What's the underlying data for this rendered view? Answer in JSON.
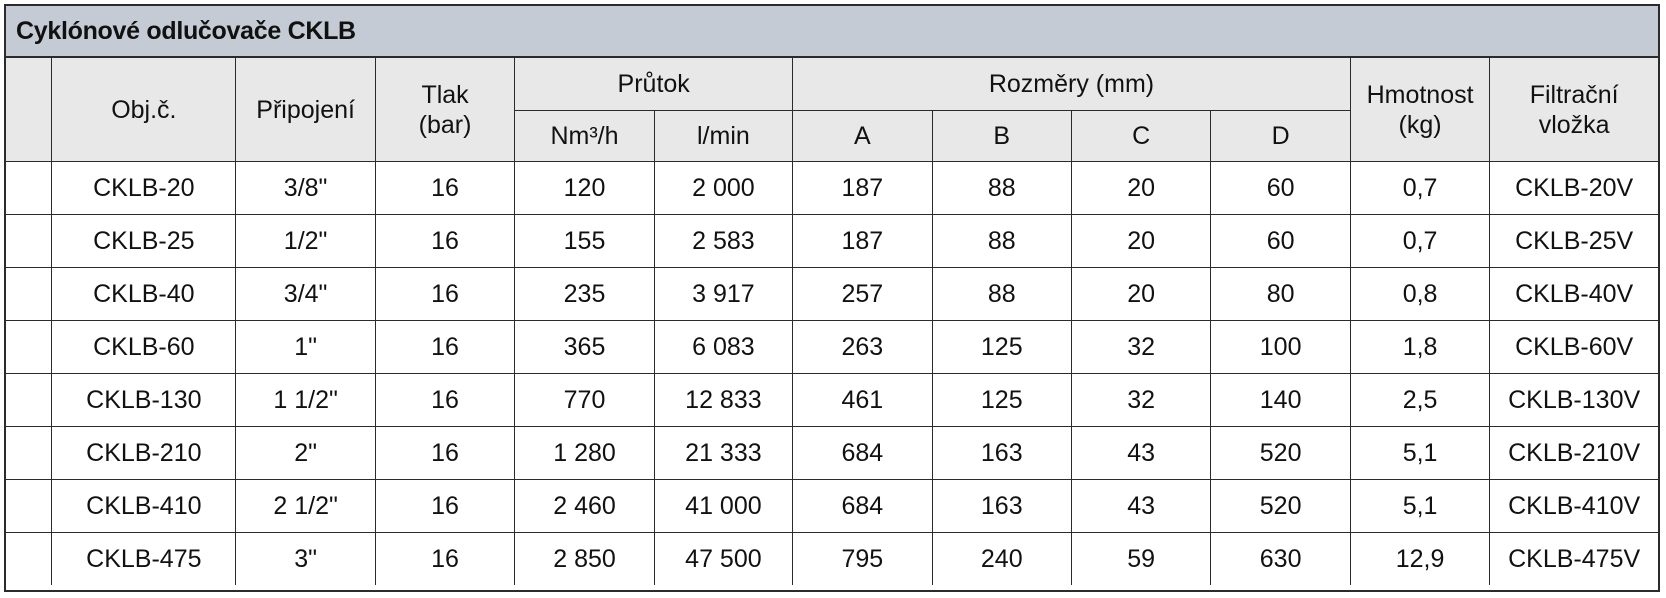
{
  "title": "Cyklónové odlučovače CKLB",
  "headers": {
    "obj": "Obj.č.",
    "pripojeni": "Připojení",
    "tlak": "Tlak",
    "tlak_unit": "(bar)",
    "prutok": "Průtok",
    "prutok_nm3": "Nm³/h",
    "prutok_lmin": "l/min",
    "rozmery": "Rozměry (mm)",
    "a": "A",
    "b": "B",
    "c": "C",
    "d": "D",
    "hmotnost": "Hmotnost",
    "hmotnost_unit": "(kg)",
    "filtracni": "Filtrační",
    "vlozka": "vložka"
  },
  "rows": [
    {
      "obj": "CKLB-20",
      "pripojeni": "3/8\"",
      "tlak": "16",
      "nm3h": "120",
      "lmin": "2 000",
      "a": "187",
      "b": "88",
      "c": "20",
      "d": "60",
      "hmotnost": "0,7",
      "vlozka": "CKLB-20V"
    },
    {
      "obj": "CKLB-25",
      "pripojeni": "1/2\"",
      "tlak": "16",
      "nm3h": "155",
      "lmin": "2 583",
      "a": "187",
      "b": "88",
      "c": "20",
      "d": "60",
      "hmotnost": "0,7",
      "vlozka": "CKLB-25V"
    },
    {
      "obj": "CKLB-40",
      "pripojeni": "3/4\"",
      "tlak": "16",
      "nm3h": "235",
      "lmin": "3 917",
      "a": "257",
      "b": "88",
      "c": "20",
      "d": "80",
      "hmotnost": "0,8",
      "vlozka": "CKLB-40V"
    },
    {
      "obj": "CKLB-60",
      "pripojeni": "1\"",
      "tlak": "16",
      "nm3h": "365",
      "lmin": "6 083",
      "a": "263",
      "b": "125",
      "c": "32",
      "d": "100",
      "hmotnost": "1,8",
      "vlozka": "CKLB-60V"
    },
    {
      "obj": "CKLB-130",
      "pripojeni": "1 1/2\"",
      "tlak": "16",
      "nm3h": "770",
      "lmin": "12 833",
      "a": "461",
      "b": "125",
      "c": "32",
      "d": "140",
      "hmotnost": "2,5",
      "vlozka": "CKLB-130V"
    },
    {
      "obj": "CKLB-210",
      "pripojeni": "2\"",
      "tlak": "16",
      "nm3h": "1 280",
      "lmin": "21 333",
      "a": "684",
      "b": "163",
      "c": "43",
      "d": "520",
      "hmotnost": "5,1",
      "vlozka": "CKLB-210V"
    },
    {
      "obj": "CKLB-410",
      "pripojeni": "2 1/2\"",
      "tlak": "16",
      "nm3h": "2 460",
      "lmin": "41 000",
      "a": "684",
      "b": "163",
      "c": "43",
      "d": "520",
      "hmotnost": "5,1",
      "vlozka": "CKLB-410V"
    },
    {
      "obj": "CKLB-475",
      "pripojeni": "3\"",
      "tlak": "16",
      "nm3h": "2 850",
      "lmin": "47 500",
      "a": "795",
      "b": "240",
      "c": "59",
      "d": "630",
      "hmotnost": "12,9",
      "vlozka": "CKLB-475V"
    }
  ],
  "colors": {
    "title_bg": "#c5cbd4",
    "header_bg": "#e8e8e8",
    "border": "#2b2b2b"
  }
}
